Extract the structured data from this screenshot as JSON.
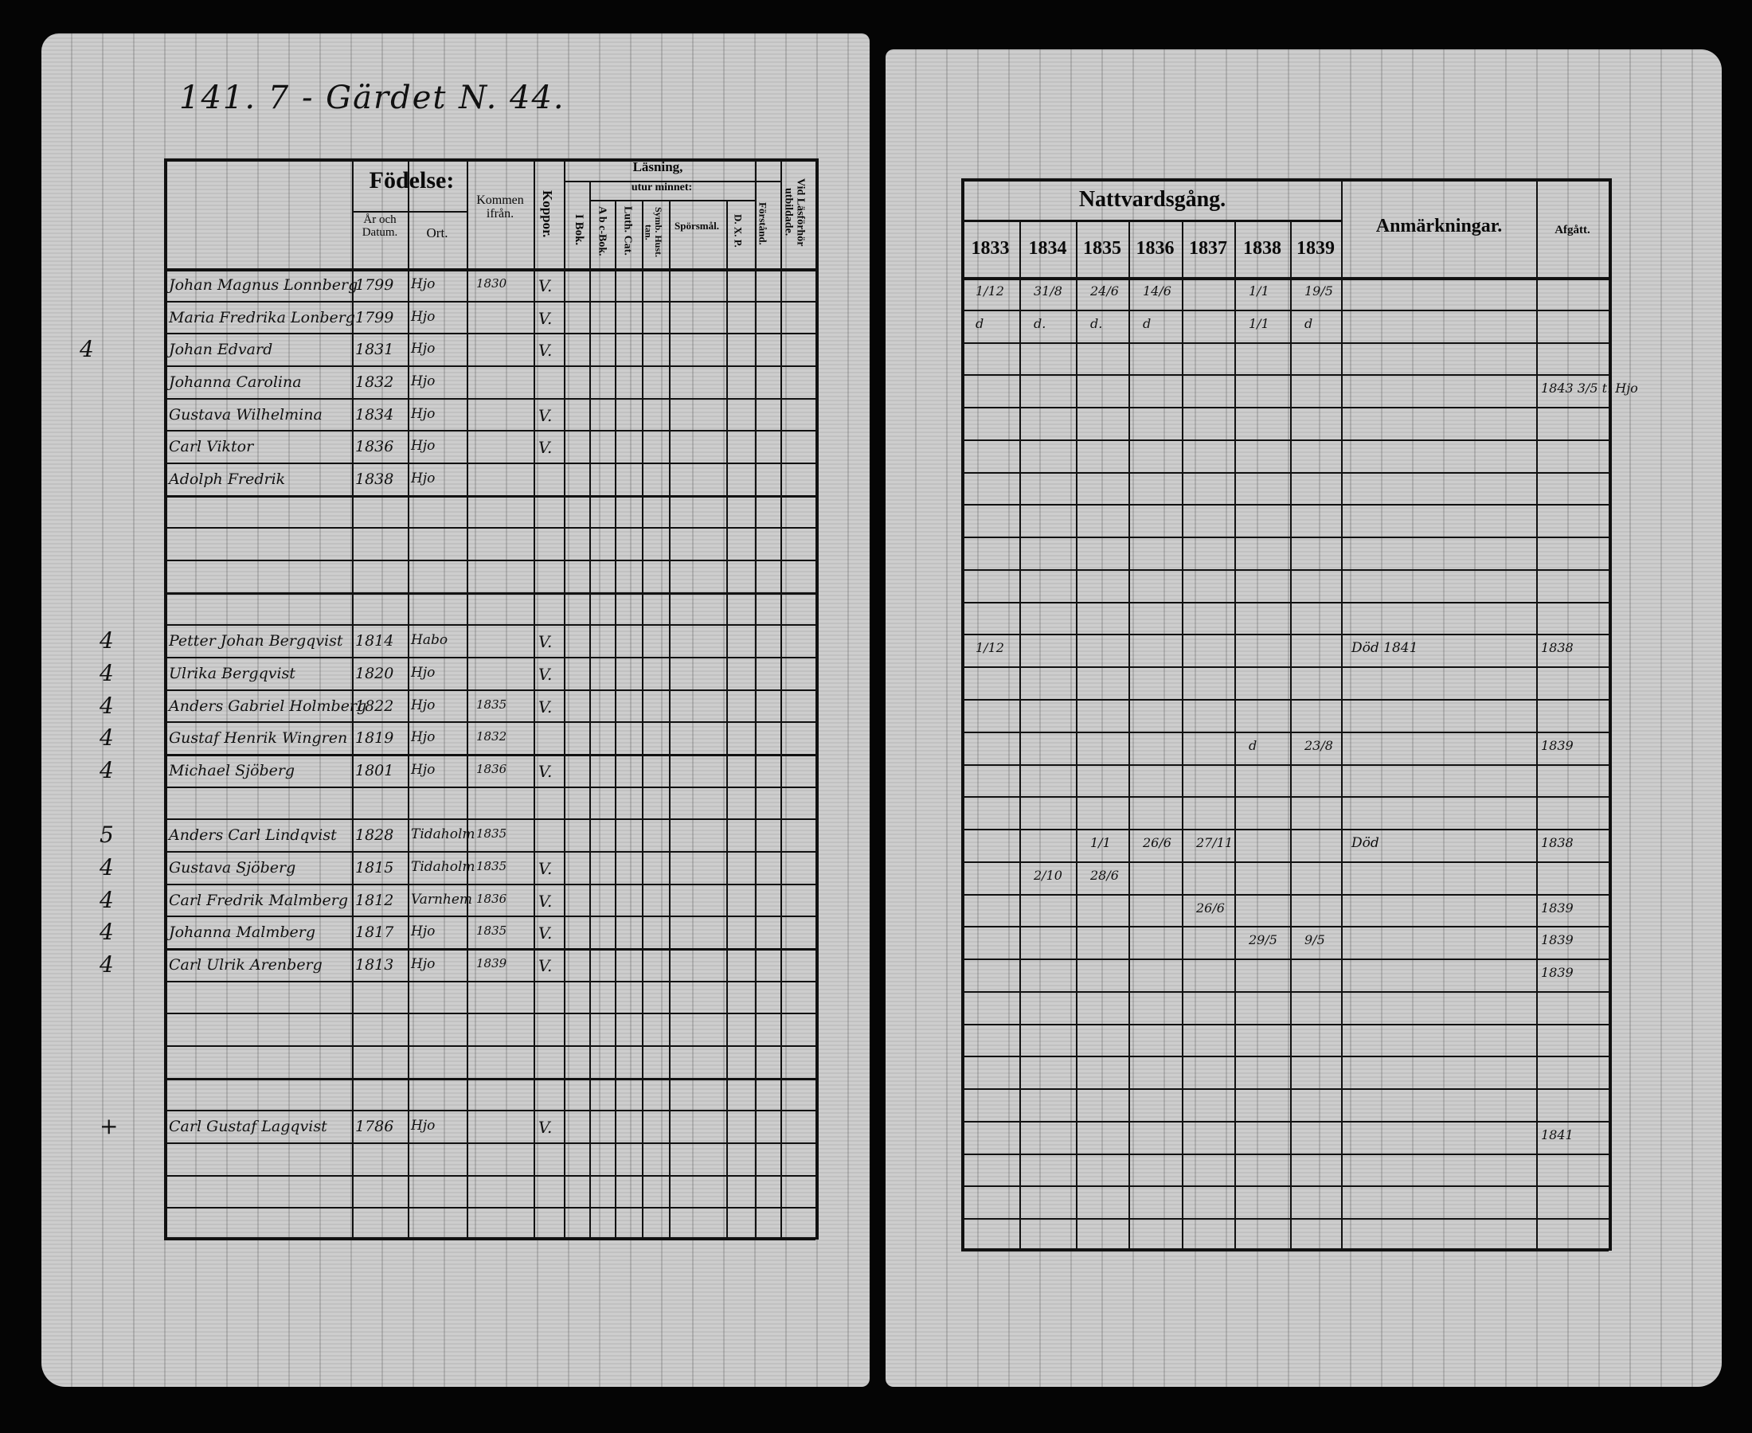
{
  "left_page": {
    "page_heading": "141. 7 - Gärdet N. 44.",
    "headers": {
      "birth_group": "Födelse:",
      "birth_year_date": "År och Datum.",
      "birth_place": "Ort.",
      "came_from": "Kommen ifrån.",
      "smallpox": "Koppor.",
      "reading_group": "Läsning,",
      "from_memory": "utur minnet:",
      "in_book": "I Bok.",
      "abc_book": "A b c-Bok.",
      "luther_catechism": "Luth. Cat.",
      "symbol_books": "Symb. Hust. tan.",
      "questions": "Spörsmål.",
      "dxp": "D. X. P.",
      "understanding": "Förstånd.",
      "age_at_communion": "Vid Läsförhör utbildade."
    },
    "entries": [
      {
        "row": 0,
        "name": "Johan Magnus Lonnberg",
        "year": "1799",
        "place": "Hjo",
        "came_from": "1830",
        "smallpox": "V."
      },
      {
        "row": 1,
        "name": "Maria Fredrika Lonberg",
        "year": "1799",
        "place": "Hjo",
        "came_from": "",
        "smallpox": "V."
      },
      {
        "row": 2,
        "name": "Johan Edvard",
        "year": "1831",
        "place": "Hjo",
        "came_from": "",
        "smallpox": "V."
      },
      {
        "row": 3,
        "name": "Johanna Carolina",
        "year": "1832",
        "place": "Hjo",
        "came_from": "",
        "smallpox": ""
      },
      {
        "row": 4,
        "name": "Gustava Wilhelmina",
        "year": "1834",
        "place": "Hjo",
        "came_from": "",
        "smallpox": "V."
      },
      {
        "row": 5,
        "name": "Carl Viktor",
        "year": "1836",
        "place": "Hjo",
        "came_from": "",
        "smallpox": "V."
      },
      {
        "row": 6,
        "name": "Adolph Fredrik",
        "year": "1838",
        "place": "Hjo",
        "came_from": "",
        "smallpox": ""
      },
      {
        "row": 11,
        "name": "Petter Johan Bergqvist",
        "year": "1814",
        "place": "Habo",
        "came_from": "",
        "smallpox": "V."
      },
      {
        "row": 12,
        "name": "Ulrika Bergqvist",
        "year": "1820",
        "place": "Hjo",
        "came_from": "",
        "smallpox": "V."
      },
      {
        "row": 13,
        "name": "Anders Gabriel Holmberg",
        "year": "1822",
        "place": "Hjo",
        "came_from": "1835",
        "smallpox": "V."
      },
      {
        "row": 14,
        "name": "Gustaf Henrik Wingren",
        "year": "1819",
        "place": "Hjo",
        "came_from": "1832",
        "smallpox": ""
      },
      {
        "row": 15,
        "name": "Michael Sjöberg",
        "year": "1801",
        "place": "Hjo",
        "came_from": "1836",
        "smallpox": "V."
      },
      {
        "row": 17,
        "name": "Anders Carl Lindqvist",
        "year": "1828",
        "place": "Tidaholm",
        "came_from": "1835",
        "smallpox": ""
      },
      {
        "row": 18,
        "name": "Gustava Sjöberg",
        "year": "1815",
        "place": "Tidaholm",
        "came_from": "1835",
        "smallpox": "V."
      },
      {
        "row": 19,
        "name": "Carl Fredrik Malmberg",
        "year": "1812",
        "place": "Varnhem",
        "came_from": "1836",
        "smallpox": "V."
      },
      {
        "row": 20,
        "name": "Johanna Malmberg",
        "year": "1817",
        "place": "Hjo",
        "came_from": "1835",
        "smallpox": "V."
      },
      {
        "row": 21,
        "name": "Carl Ulrik Arenberg",
        "year": "1813",
        "place": "Hjo",
        "came_from": "1839",
        "smallpox": "V."
      },
      {
        "row": 26,
        "name": "Carl Gustaf Lagqvist",
        "year": "1786",
        "place": "Hjo",
        "came_from": "",
        "smallpox": "V."
      }
    ],
    "margin_marks": [
      "4",
      "4",
      "4",
      "4",
      "4",
      "4",
      "5",
      "4",
      "4",
      "4",
      "4",
      "+"
    ]
  },
  "right_page": {
    "headers": {
      "communion_group": "Nattvardsgång.",
      "years": [
        "1833",
        "1834",
        "1835",
        "1836",
        "1837",
        "1838",
        "1839"
      ],
      "remarks": "Anmärkningar.",
      "departed": "Afgått."
    },
    "entries": [
      {
        "row": 0,
        "dates": [
          "1/12",
          "31/8",
          "24/6",
          "14/6",
          "",
          "1/1",
          "19/5"
        ],
        "remark": "",
        "departed": ""
      },
      {
        "row": 1,
        "dates": [
          "d",
          "d.",
          "d.",
          "d",
          "",
          "1/1",
          "d"
        ],
        "remark": "",
        "departed": ""
      },
      {
        "row": 3,
        "dates": [
          "",
          "",
          "",
          "",
          "",
          "",
          ""
        ],
        "remark": "",
        "departed": "1843 3/5 t. Hjo"
      },
      {
        "row": 11,
        "dates": [
          "1/12",
          "",
          "",
          "",
          "",
          "",
          ""
        ],
        "remark": "Död 1841",
        "departed": "1838"
      },
      {
        "row": 14,
        "dates": [
          "",
          "",
          "",
          "",
          "",
          "d",
          "23/8"
        ],
        "remark": "",
        "departed": "1839"
      },
      {
        "row": 17,
        "dates": [
          "",
          "",
          "1/1",
          "26/6",
          "27/11",
          "",
          ""
        ],
        "remark": "Död",
        "departed": "1838"
      },
      {
        "row": 18,
        "dates": [
          "",
          "2/10",
          "28/6",
          "",
          "",
          "",
          ""
        ],
        "remark": "",
        "departed": ""
      },
      {
        "row": 19,
        "dates": [
          "",
          "",
          "",
          "",
          "26/6",
          "",
          ""
        ],
        "remark": "",
        "departed": "1839"
      },
      {
        "row": 20,
        "dates": [
          "",
          "",
          "",
          "",
          "",
          "29/5",
          "9/5"
        ],
        "remark": "",
        "departed": "1839"
      },
      {
        "row": 21,
        "dates": [
          "",
          "",
          "",
          "",
          "",
          "",
          ""
        ],
        "remark": "",
        "departed": "1839"
      },
      {
        "row": 26,
        "dates": [
          "",
          "",
          "",
          "",
          "",
          "",
          ""
        ],
        "remark": "",
        "departed": "1841"
      }
    ]
  }
}
